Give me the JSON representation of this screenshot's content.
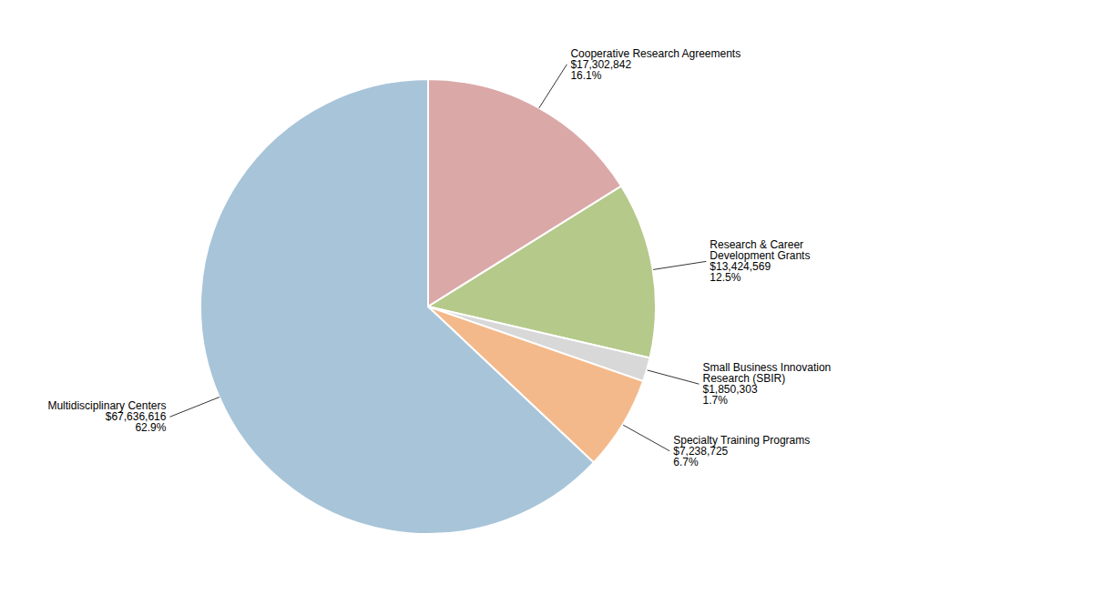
{
  "chart_data": {
    "type": "pie",
    "categories": [
      "Cooperative Research Agreements",
      "Research & Career\nDevelopment Grants",
      "Small Business Innovation\nResearch (SBIR)",
      "Specialty Training Programs",
      "Multidisciplinary Centers"
    ],
    "values": [
      16.1,
      12.5,
      1.7,
      6.7,
      62.9
    ],
    "value_labels": [
      "16.1%",
      "12.5%",
      "1.7%",
      "6.7%",
      "62.9%"
    ],
    "amounts": [
      17302842,
      13424569,
      1850303,
      7238725,
      67636616
    ],
    "amount_labels": [
      "$17,302,842",
      "$13,424,569",
      "$1,850,303",
      "$7,238,725",
      "$67,636,616"
    ],
    "colors": [
      "#dba8a8",
      "#b5c98a",
      "#d8d8d8",
      "#f4b98a",
      "#a8c4d9"
    ],
    "data_labels": true
  }
}
